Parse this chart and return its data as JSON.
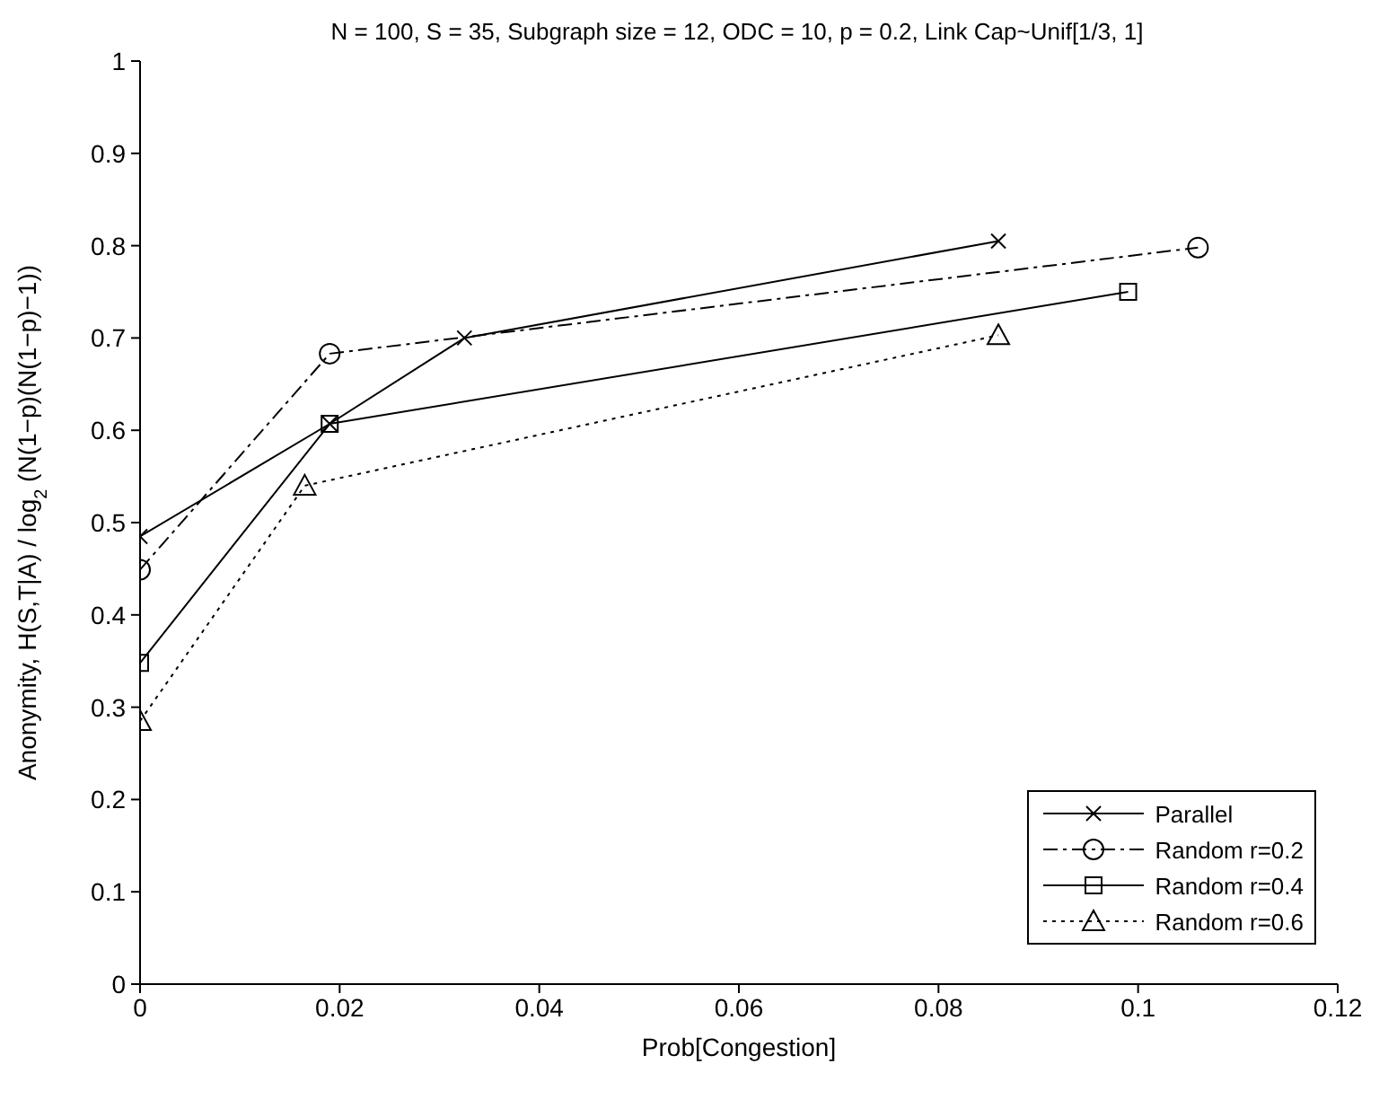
{
  "chart_data": {
    "type": "line",
    "title": "N = 100, S = 35, Subgraph size = 12, ODC = 10, p = 0.2, Link Cap~Unif[1/3, 1]",
    "xlabel": "Prob[Congestion]",
    "ylabel": "Anonymity, H(S,T|A) / log$_{2}$ (N(1−p)(N(1−p)−1))",
    "series": [
      {
        "name": "Parallel",
        "color": "#000000",
        "marker": "cross",
        "line_style": "solid",
        "x": [
          0,
          0.019,
          0.0325,
          0.086
        ],
        "values": [
          0.485,
          0.607,
          0.7,
          0.805
        ]
      },
      {
        "name": "Random r=0.2",
        "color": "#000000",
        "marker": "circle",
        "line_style": "dashdot",
        "x": [
          0,
          0.019,
          0.106
        ],
        "values": [
          0.449,
          0.683,
          0.798
        ]
      },
      {
        "name": "Random r=0.4",
        "color": "#000000",
        "marker": "square",
        "line_style": "solid",
        "x": [
          0,
          0.019,
          0.099
        ],
        "values": [
          0.348,
          0.607,
          0.75
        ]
      },
      {
        "name": "Random r=0.6",
        "color": "#000000",
        "marker": "triangle",
        "line_style": "dotted",
        "x": [
          0,
          0.0165,
          0.086
        ],
        "values": [
          0.285,
          0.54,
          0.703
        ]
      }
    ],
    "xlim": [
      0,
      0.12
    ],
    "xticks": [
      0,
      0.02,
      0.04,
      0.06,
      0.08,
      0.1,
      0.12
    ],
    "ylim": [
      0,
      1
    ],
    "yticks": [
      0,
      0.1,
      0.2,
      0.3,
      0.4,
      0.5,
      0.6,
      0.7,
      0.8,
      0.9,
      1
    ],
    "grid": false,
    "legend": "bottom right"
  }
}
